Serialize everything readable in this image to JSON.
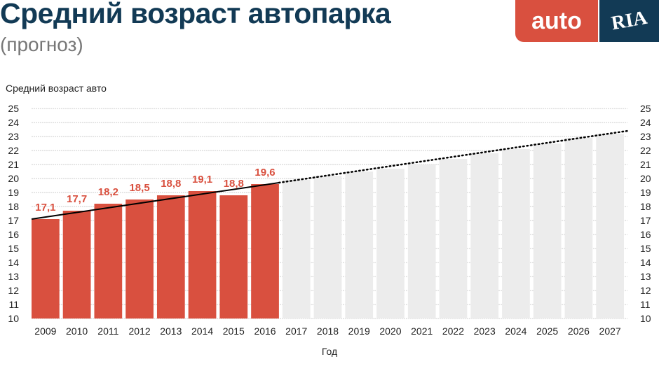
{
  "header": {
    "title": "Средний возраст автопарка",
    "subtitle": "(прогноз)",
    "logo_auto": "auto",
    "logo_ria": "RIA"
  },
  "colors": {
    "actual": "#d9503f",
    "forecast": "#ececec",
    "title": "#123a55",
    "trend": "#000000"
  },
  "chart_data": {
    "type": "bar",
    "ylabel": "Средний возраст авто",
    "xlabel": "Год",
    "ylim": [
      10,
      25
    ],
    "yticks": [
      10,
      11,
      12,
      13,
      14,
      15,
      16,
      17,
      18,
      19,
      20,
      21,
      22,
      23,
      24,
      25
    ],
    "grid": true,
    "categories": [
      "2009",
      "2010",
      "2011",
      "2012",
      "2013",
      "2014",
      "2015",
      "2016",
      "2017",
      "2018",
      "2019",
      "2020",
      "2021",
      "2022",
      "2023",
      "2024",
      "2025",
      "2026",
      "2027"
    ],
    "series": [
      {
        "values": [
          17.1,
          17.7,
          18.2,
          18.5,
          18.8,
          19.1,
          18.8,
          19.6,
          null,
          null,
          null,
          null,
          null,
          null,
          null,
          null,
          null,
          null,
          null
        ],
        "labels": [
          "17,1",
          "17,7",
          "18,2",
          "18,5",
          "18,8",
          "19,1",
          "18,8",
          "19,6"
        ]
      },
      {
        "values": [
          null,
          null,
          null,
          null,
          null,
          null,
          null,
          null,
          19.9,
          20.2,
          20.5,
          20.7,
          21.0,
          21.4,
          21.8,
          22.1,
          22.5,
          22.9,
          23.2
        ]
      }
    ],
    "trend": {
      "start": [
        2009,
        17.1
      ],
      "end_actual": [
        2016,
        19.7
      ],
      "end_forecast": [
        2027,
        23.4
      ]
    }
  }
}
